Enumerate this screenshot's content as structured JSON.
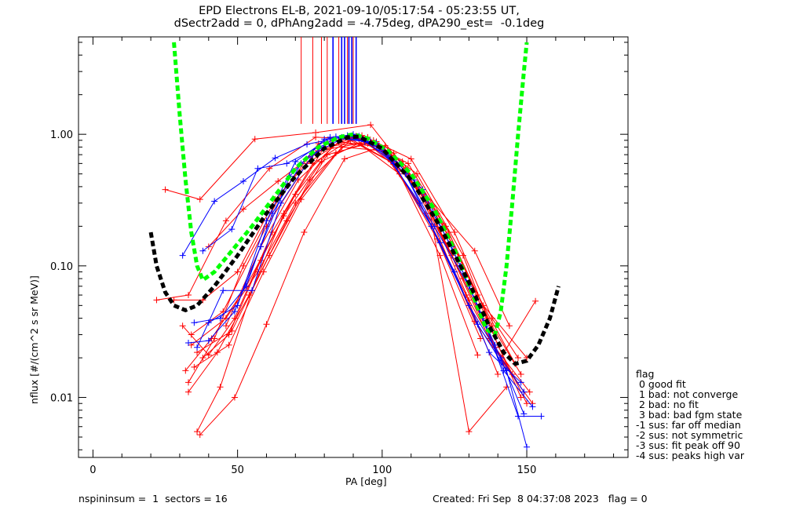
{
  "header": {
    "title_line1": "EPD Electrons EL-B, 2021-09-10/05:17:54 - 05:23:55 UT,",
    "title_line2": "dSectr2add = 0, dPhAng2add = -4.75deg, dPA290_est=  -0.1deg"
  },
  "footer": {
    "left": "nspininsum =  1  sectors = 16",
    "right": "Created: Fri Sep  8 04:37:08 2023   flag = 0"
  },
  "legend": {
    "title": "flag",
    "items": [
      " 0 good fit",
      " 1 bad: not converge",
      " 2 bad: no fit",
      " 3 bad: bad fgm state",
      "-1 sus: far off median",
      "-2 sus: not symmetric",
      "-3 sus: fit peak off 90",
      "-4 sus: peaks high var"
    ]
  },
  "colors": {
    "red": "#ff0000",
    "blue": "#0000ff",
    "green": "#00ff00",
    "black": "#000000"
  },
  "chart_data": {
    "type": "line",
    "xlabel": "PA [deg]",
    "ylabel": "nflux [#/(cm^2 s sr MeV)]",
    "xlim": [
      -5,
      185
    ],
    "ylim": [
      0.0035,
      5.5
    ],
    "yscale": "log",
    "xticks": [
      0,
      50,
      100,
      150
    ],
    "xtick_labels": [
      "0",
      "50",
      "100",
      "150"
    ],
    "yticks": [
      0.01,
      0.1,
      1.0
    ],
    "ytick_labels": [
      "0.01",
      "0.10",
      "1.00"
    ],
    "vertical_markers": {
      "red": [
        72,
        76,
        79,
        81,
        85,
        88,
        90
      ],
      "blue": [
        83,
        86,
        87,
        88.5,
        89.5,
        91
      ]
    },
    "fit_curves": [
      {
        "color": "green",
        "x": [
          28,
          30,
          32,
          34,
          36,
          38,
          42,
          48,
          55,
          62,
          70,
          78,
          85,
          90,
          95,
          102,
          110,
          118,
          126,
          132,
          136,
          139,
          141,
          143,
          145,
          147,
          149,
          150
        ],
        "y": [
          5.0,
          1.4,
          0.45,
          0.18,
          0.1,
          0.078,
          0.09,
          0.13,
          0.2,
          0.32,
          0.55,
          0.8,
          0.95,
          1.0,
          0.93,
          0.75,
          0.5,
          0.27,
          0.12,
          0.055,
          0.033,
          0.03,
          0.045,
          0.1,
          0.3,
          1.0,
          3.0,
          5.0
        ]
      },
      {
        "color": "black",
        "x": [
          20,
          22,
          25,
          28,
          32,
          36,
          42,
          50,
          60,
          70,
          80,
          88,
          92,
          100,
          110,
          120,
          130,
          137,
          142,
          146,
          150,
          154,
          158,
          161
        ],
        "y": [
          0.18,
          0.1,
          0.063,
          0.05,
          0.046,
          0.05,
          0.07,
          0.12,
          0.25,
          0.48,
          0.78,
          0.95,
          0.96,
          0.78,
          0.45,
          0.2,
          0.075,
          0.035,
          0.022,
          0.018,
          0.019,
          0.025,
          0.04,
          0.07
        ]
      }
    ],
    "series": [
      {
        "color": "red",
        "x": [
          25,
          37,
          56,
          77,
          96,
          112,
          132,
          144
        ],
        "y": [
          0.38,
          0.32,
          0.92,
          1.03,
          1.18,
          0.42,
          0.13,
          0.035
        ]
      },
      {
        "color": "red",
        "x": [
          22,
          33,
          46,
          61,
          77,
          92,
          108,
          122,
          138,
          148
        ],
        "y": [
          0.055,
          0.06,
          0.22,
          0.55,
          0.95,
          0.92,
          0.55,
          0.2,
          0.035,
          0.015
        ]
      },
      {
        "color": "red",
        "x": [
          36,
          44,
          55,
          66,
          80,
          95,
          112,
          128,
          140,
          150
        ],
        "y": [
          0.0055,
          0.012,
          0.065,
          0.25,
          0.8,
          0.95,
          0.5,
          0.12,
          0.025,
          0.009
        ]
      },
      {
        "color": "red",
        "x": [
          33,
          42,
          52,
          65,
          78,
          93,
          110,
          125,
          138,
          147
        ],
        "y": [
          0.013,
          0.028,
          0.1,
          0.35,
          0.85,
          0.98,
          0.65,
          0.18,
          0.04,
          0.02
        ]
      },
      {
        "color": "red",
        "x": [
          38,
          47,
          58,
          70,
          83,
          98,
          115,
          130,
          142,
          152
        ],
        "y": [
          0.02,
          0.03,
          0.11,
          0.35,
          0.82,
          0.88,
          0.32,
          0.055,
          0.018,
          0.009
        ]
      },
      {
        "color": "red",
        "x": [
          34,
          45,
          60,
          74,
          88,
          103,
          118,
          132,
          145
        ],
        "y": [
          0.03,
          0.045,
          0.2,
          0.6,
          0.95,
          0.62,
          0.2,
          0.038,
          0.015
        ]
      },
      {
        "color": "red",
        "x": [
          31,
          40,
          49,
          62,
          76,
          91,
          107,
          121,
          135,
          150
        ],
        "y": [
          0.035,
          0.021,
          0.04,
          0.18,
          0.6,
          0.97,
          0.62,
          0.2,
          0.05,
          0.02
        ]
      },
      {
        "color": "red",
        "x": [
          40,
          52,
          64,
          78,
          92,
          106,
          120,
          133
        ],
        "y": [
          0.14,
          0.27,
          0.44,
          0.75,
          0.85,
          0.5,
          0.12,
          0.021
        ]
      },
      {
        "color": "red",
        "x": [
          35,
          47,
          59,
          72,
          86,
          100,
          115,
          129,
          140
        ],
        "y": [
          0.017,
          0.025,
          0.09,
          0.32,
          0.8,
          0.75,
          0.25,
          0.06,
          0.015
        ]
      },
      {
        "color": "red",
        "x": [
          33,
          43,
          54,
          67,
          81,
          95,
          110,
          124,
          137,
          149
        ],
        "y": [
          0.011,
          0.022,
          0.06,
          0.22,
          0.7,
          0.85,
          0.45,
          0.12,
          0.028,
          0.011
        ]
      },
      {
        "color": "red",
        "x": [
          37,
          49,
          60,
          73,
          87,
          101,
          116,
          130,
          143
        ],
        "y": [
          0.0052,
          0.01,
          0.036,
          0.18,
          0.65,
          0.82,
          0.3,
          0.0055,
          0.012
        ]
      },
      {
        "color": "red",
        "x": [
          28,
          38,
          50,
          63,
          77,
          90,
          104,
          119,
          133,
          146
        ],
        "y": [
          0.055,
          0.055,
          0.09,
          0.32,
          0.72,
          0.95,
          0.72,
          0.25,
          0.06,
          0.018
        ]
      },
      {
        "color": "red",
        "x": [
          34,
          46,
          57,
          70,
          84,
          97,
          112,
          126,
          139,
          151
        ],
        "y": [
          0.025,
          0.04,
          0.09,
          0.3,
          0.72,
          0.9,
          0.4,
          0.1,
          0.024,
          0.011
        ]
      },
      {
        "color": "red",
        "x": [
          36,
          48,
          61,
          75,
          89,
          104,
          119,
          134
        ],
        "y": [
          0.022,
          0.032,
          0.12,
          0.45,
          0.9,
          0.6,
          0.16,
          0.028
        ]
      },
      {
        "color": "red",
        "x": [
          32,
          41,
          53,
          66,
          79,
          94,
          109,
          123,
          136,
          148
        ],
        "y": [
          0.016,
          0.028,
          0.07,
          0.24,
          0.62,
          0.9,
          0.6,
          0.18,
          0.04,
          0.01
        ]
      },
      {
        "color": "red",
        "x": [
          46,
          58,
          71,
          85,
          99,
          114,
          128,
          141,
          153
        ],
        "y": [
          0.035,
          0.14,
          0.45,
          0.88,
          0.8,
          0.35,
          0.08,
          0.02,
          0.054
        ]
      },
      {
        "color": "blue",
        "x": [
          33,
          40,
          49,
          58,
          68,
          80,
          92,
          104,
          117,
          130,
          141,
          149
        ],
        "y": [
          0.026,
          0.027,
          0.045,
          0.14,
          0.48,
          0.92,
          0.97,
          0.6,
          0.2,
          0.05,
          0.02,
          0.011
        ]
      },
      {
        "color": "blue",
        "x": [
          35,
          44,
          53,
          62,
          72,
          84,
          96,
          108,
          120,
          133,
          143,
          150
        ],
        "y": [
          0.037,
          0.04,
          0.07,
          0.25,
          0.6,
          0.96,
          0.88,
          0.5,
          0.15,
          0.036,
          0.016,
          0.0042
        ]
      },
      {
        "color": "blue",
        "x": [
          38,
          48,
          57,
          67,
          78,
          90,
          102,
          114,
          127,
          139,
          149
        ],
        "y": [
          0.13,
          0.19,
          0.55,
          0.6,
          0.8,
          1.0,
          0.72,
          0.38,
          0.1,
          0.025,
          0.0075
        ]
      },
      {
        "color": "blue",
        "x": [
          36,
          45,
          55,
          65,
          76,
          88,
          100,
          113,
          125,
          137,
          148
        ],
        "y": [
          0.024,
          0.065,
          0.065,
          0.3,
          0.7,
          0.98,
          0.78,
          0.3,
          0.09,
          0.022,
          0.013
        ]
      },
      {
        "color": "blue",
        "x": [
          40,
          50,
          60,
          70,
          82,
          94,
          106,
          118,
          130,
          142,
          152
        ],
        "y": [
          0.037,
          0.05,
          0.22,
          0.62,
          0.95,
          0.88,
          0.6,
          0.2,
          0.07,
          0.016,
          0.0085
        ]
      },
      {
        "color": "blue",
        "x": [
          31,
          42,
          52,
          63,
          74,
          86,
          98,
          111,
          124,
          136,
          147,
          155
        ],
        "y": [
          0.12,
          0.31,
          0.44,
          0.66,
          0.84,
          0.95,
          0.86,
          0.45,
          0.14,
          0.035,
          0.0072,
          0.0072
        ]
      }
    ]
  }
}
